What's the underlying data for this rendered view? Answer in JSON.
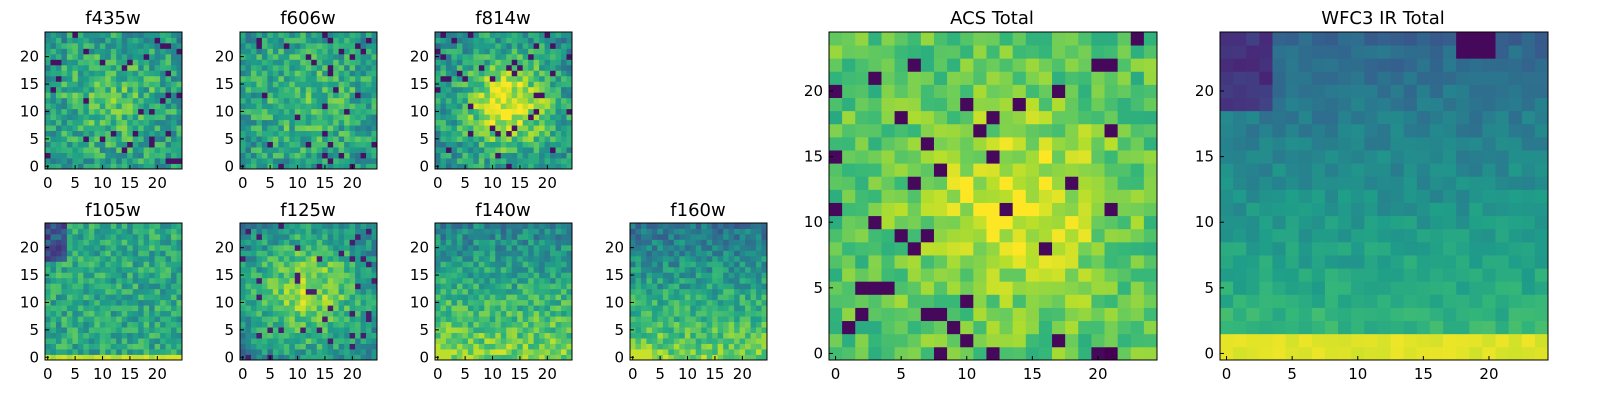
{
  "figure": {
    "panels": [
      {
        "id": "p-f435w",
        "title": "f435w",
        "xticks": [
          "0",
          "5",
          "10",
          "15",
          "20"
        ],
        "yticks": [
          "0",
          "5",
          "10",
          "15",
          "20"
        ]
      },
      {
        "id": "p-f606w",
        "title": "f606w",
        "xticks": [
          "0",
          "5",
          "10",
          "15",
          "20"
        ],
        "yticks": [
          "0",
          "5",
          "10",
          "15",
          "20"
        ]
      },
      {
        "id": "p-f814w",
        "title": "f814w",
        "xticks": [
          "0",
          "5",
          "10",
          "15",
          "20"
        ],
        "yticks": [
          "0",
          "5",
          "10",
          "15",
          "20"
        ]
      },
      {
        "id": "p-f105w",
        "title": "f105w",
        "xticks": [
          "0",
          "5",
          "10",
          "15",
          "20"
        ],
        "yticks": [
          "0",
          "5",
          "10",
          "15",
          "20"
        ]
      },
      {
        "id": "p-f125w",
        "title": "f125w",
        "xticks": [
          "0",
          "5",
          "10",
          "15",
          "20"
        ],
        "yticks": [
          "0",
          "5",
          "10",
          "15",
          "20"
        ]
      },
      {
        "id": "p-f140w",
        "title": "f140w",
        "xticks": [
          "0",
          "5",
          "10",
          "15",
          "20"
        ],
        "yticks": [
          "0",
          "5",
          "10",
          "15",
          "20"
        ]
      },
      {
        "id": "p-f160w",
        "title": "f160w",
        "xticks": [
          "0",
          "5",
          "10",
          "15",
          "20"
        ],
        "yticks": [
          "0",
          "5",
          "10",
          "15",
          "20"
        ]
      },
      {
        "id": "p-acs",
        "title": "ACS Total",
        "xticks": [
          "0",
          "5",
          "10",
          "15",
          "20"
        ],
        "yticks": [
          "0",
          "5",
          "10",
          "15",
          "20"
        ]
      },
      {
        "id": "p-wfc3",
        "title": "WFC3 IR Total",
        "xticks": [
          "0",
          "5",
          "10",
          "15",
          "20"
        ],
        "yticks": [
          "0",
          "5",
          "10",
          "15",
          "20"
        ]
      }
    ]
  },
  "chart_data": [
    {
      "type": "heatmap",
      "title": "f435w",
      "grid_size": 25,
      "xlim": [
        -0.5,
        24.5
      ],
      "ylim": [
        -0.5,
        24.5
      ],
      "colormap": "viridis",
      "pattern": "noisy, brighter center"
    },
    {
      "type": "heatmap",
      "title": "f606w",
      "grid_size": 25,
      "xlim": [
        -0.5,
        24.5
      ],
      "ylim": [
        -0.5,
        24.5
      ],
      "colormap": "viridis",
      "pattern": "noisy, brighter center"
    },
    {
      "type": "heatmap",
      "title": "f814w",
      "grid_size": 25,
      "xlim": [
        -0.5,
        24.5
      ],
      "ylim": [
        -0.5,
        24.5
      ],
      "colormap": "viridis",
      "pattern": "bright blob near (13,11)"
    },
    {
      "type": "heatmap",
      "title": "f105w",
      "grid_size": 25,
      "xlim": [
        -0.5,
        24.5
      ],
      "ylim": [
        -0.5,
        24.5
      ],
      "colormap": "viridis",
      "pattern": "dark upper-left, bright bottom row"
    },
    {
      "type": "heatmap",
      "title": "f125w",
      "grid_size": 25,
      "xlim": [
        -0.5,
        24.5
      ],
      "ylim": [
        -0.5,
        24.5
      ],
      "colormap": "viridis",
      "pattern": "bright center, dark edges"
    },
    {
      "type": "heatmap",
      "title": "f140w",
      "grid_size": 25,
      "xlim": [
        -0.5,
        24.5
      ],
      "ylim": [
        -0.5,
        24.5
      ],
      "colormap": "viridis",
      "pattern": "dark top, bright bottom-left"
    },
    {
      "type": "heatmap",
      "title": "f160w",
      "grid_size": 25,
      "xlim": [
        -0.5,
        24.5
      ],
      "ylim": [
        -0.5,
        24.5
      ],
      "colormap": "viridis",
      "pattern": "dark top, bright bottom-left"
    },
    {
      "type": "heatmap",
      "title": "ACS Total",
      "grid_size": 25,
      "xlim": [
        -0.5,
        24.5
      ],
      "ylim": [
        -0.5,
        24.5
      ],
      "colormap": "viridis",
      "pattern": "mostly bright, scattered dark pixels, bright center (14,11)"
    },
    {
      "type": "heatmap",
      "title": "WFC3 IR Total",
      "grid_size": 25,
      "xlim": [
        -0.5,
        24.5
      ],
      "ylim": [
        -0.5,
        24.5
      ],
      "colormap": "viridis",
      "pattern": "dark top band, gradient to bright bottom rows 0-1"
    }
  ]
}
